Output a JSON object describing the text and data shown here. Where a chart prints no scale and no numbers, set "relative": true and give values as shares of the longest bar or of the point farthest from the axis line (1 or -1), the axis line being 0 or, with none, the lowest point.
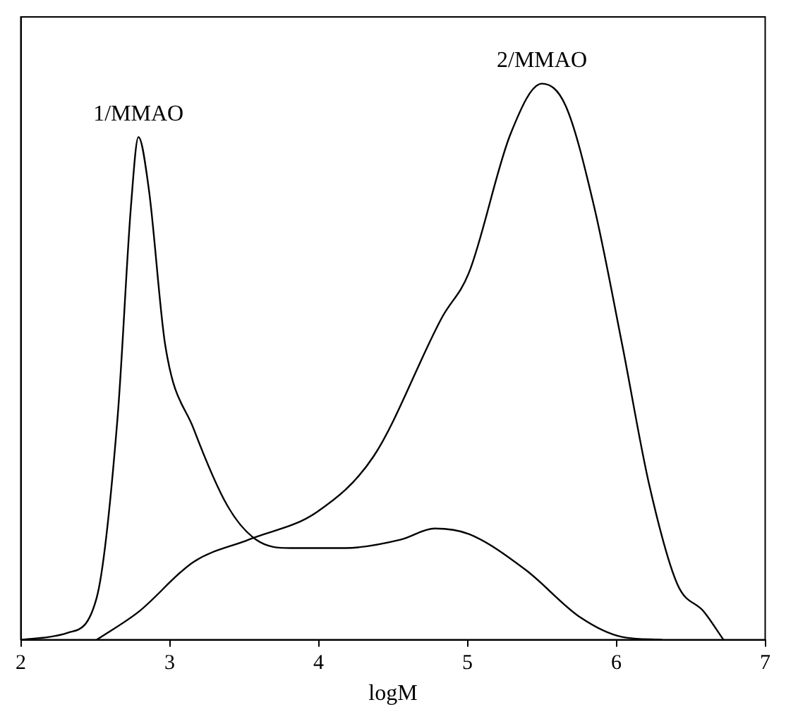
{
  "chart_data": {
    "type": "line",
    "xlabel": "logM",
    "relative": true,
    "xlim": [
      2,
      7
    ],
    "xticks": [
      2,
      3,
      4,
      5,
      6,
      7
    ],
    "grid": false,
    "legend": false,
    "marker": "none",
    "line_style": "solid",
    "series": [
      {
        "name": "1/MMAO",
        "color": "#000000",
        "x": [
          2.0,
          2.32,
          2.51,
          2.65,
          2.74,
          2.79,
          2.86,
          2.97,
          3.16,
          3.39,
          3.58,
          3.81,
          4.18,
          4.55,
          4.78,
          5.01,
          5.39,
          5.76,
          6.04,
          6.31
        ],
        "values": [
          0,
          0.013,
          0.076,
          0.4,
          0.78,
          0.904,
          0.81,
          0.53,
          0.38,
          0.24,
          0.18,
          0.165,
          0.165,
          0.18,
          0.2,
          0.19,
          0.126,
          0.04,
          0.005,
          0
        ]
      },
      {
        "name": "2/MMAO",
        "color": "#000000",
        "x": [
          2.51,
          2.79,
          3.16,
          3.53,
          3.99,
          4.37,
          4.83,
          5.01,
          5.29,
          5.5,
          5.66,
          5.85,
          6.04,
          6.22,
          6.41,
          6.59,
          6.72
        ],
        "values": [
          0,
          0.05,
          0.14,
          0.18,
          0.23,
          0.33,
          0.58,
          0.66,
          0.91,
          1,
          0.96,
          0.78,
          0.53,
          0.28,
          0.1,
          0.05,
          0
        ]
      }
    ]
  }
}
